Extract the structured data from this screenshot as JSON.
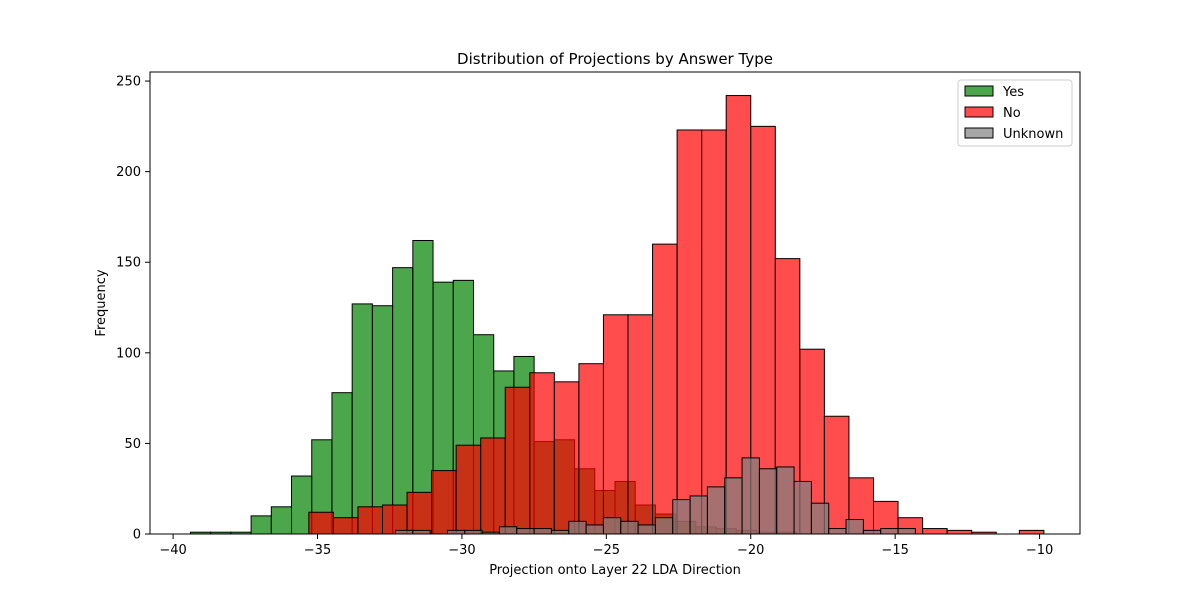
{
  "chart_data": {
    "type": "bar",
    "title": "Distribution of Projections by Answer Type",
    "xlabel": "Projection onto Layer 22 LDA Direction",
    "ylabel": "Frequency",
    "xlim": [
      -40.8,
      -8.6
    ],
    "ylim": [
      0,
      255
    ],
    "xticks": [
      -40,
      -35,
      -30,
      -25,
      -20,
      -15,
      -10
    ],
    "yticks": [
      0,
      50,
      100,
      150,
      200,
      250
    ],
    "grid": false,
    "legend_position": "top-right",
    "series": [
      {
        "name": "Yes",
        "color": "#008000",
        "bins": [
          [
            -39.4,
            -38.7,
            1
          ],
          [
            -38.7,
            -38.0,
            1
          ],
          [
            -38.0,
            -37.3,
            1
          ],
          [
            -37.3,
            -36.6,
            10
          ],
          [
            -36.6,
            -35.9,
            15
          ],
          [
            -35.9,
            -35.2,
            32
          ],
          [
            -35.2,
            -34.5,
            52
          ],
          [
            -34.5,
            -33.8,
            78
          ],
          [
            -33.8,
            -33.1,
            127
          ],
          [
            -33.1,
            -32.4,
            126
          ],
          [
            -32.4,
            -31.7,
            147
          ],
          [
            -31.7,
            -31.0,
            162
          ],
          [
            -31.0,
            -30.3,
            139
          ],
          [
            -30.3,
            -29.6,
            140
          ],
          [
            -29.6,
            -28.9,
            110
          ],
          [
            -28.9,
            -28.2,
            90
          ],
          [
            -28.2,
            -27.5,
            98
          ],
          [
            -27.5,
            -26.8,
            51
          ],
          [
            -26.8,
            -26.1,
            52
          ],
          [
            -26.1,
            -25.4,
            36
          ],
          [
            -25.4,
            -24.7,
            24
          ],
          [
            -24.7,
            -24.0,
            29
          ],
          [
            -24.0,
            -23.3,
            16
          ],
          [
            -23.3,
            -22.6,
            11
          ],
          [
            -22.6,
            -21.9,
            7
          ],
          [
            -21.9,
            -21.2,
            4
          ],
          [
            -21.2,
            -20.5,
            3
          ],
          [
            -20.5,
            -19.8,
            2
          ],
          [
            -19.8,
            -19.1,
            1
          ],
          [
            -19.1,
            -18.4,
            1
          ]
        ]
      },
      {
        "name": "No",
        "color": "#ff0000",
        "bins": [
          [
            -35.3,
            -34.45,
            12
          ],
          [
            -34.45,
            -33.6,
            9
          ],
          [
            -33.6,
            -32.75,
            15
          ],
          [
            -32.75,
            -31.9,
            16
          ],
          [
            -31.9,
            -31.05,
            23
          ],
          [
            -31.05,
            -30.2,
            35
          ],
          [
            -30.2,
            -29.35,
            49
          ],
          [
            -29.35,
            -28.5,
            53
          ],
          [
            -28.5,
            -27.65,
            81
          ],
          [
            -27.65,
            -26.8,
            89
          ],
          [
            -26.8,
            -25.95,
            84
          ],
          [
            -25.95,
            -25.1,
            94
          ],
          [
            -25.1,
            -24.25,
            121
          ],
          [
            -24.25,
            -23.4,
            121
          ],
          [
            -23.4,
            -22.55,
            160
          ],
          [
            -22.55,
            -21.7,
            223
          ],
          [
            -21.7,
            -20.85,
            223
          ],
          [
            -20.85,
            -20.0,
            242
          ],
          [
            -20.0,
            -19.15,
            225
          ],
          [
            -19.15,
            -18.3,
            152
          ],
          [
            -18.3,
            -17.45,
            102
          ],
          [
            -17.45,
            -16.6,
            65
          ],
          [
            -16.6,
            -15.75,
            31
          ],
          [
            -15.75,
            -14.9,
            18
          ],
          [
            -14.9,
            -14.05,
            9
          ],
          [
            -14.05,
            -13.2,
            3
          ],
          [
            -13.2,
            -12.35,
            2
          ],
          [
            -12.35,
            -11.5,
            1
          ],
          [
            -10.7,
            -9.85,
            2
          ]
        ]
      },
      {
        "name": "Unknown",
        "color": "#808080",
        "bins": [
          [
            -32.3,
            -31.7,
            2
          ],
          [
            -31.7,
            -31.1,
            2
          ],
          [
            -30.5,
            -29.9,
            2
          ],
          [
            -29.9,
            -29.3,
            2
          ],
          [
            -29.3,
            -28.7,
            1
          ],
          [
            -28.7,
            -28.1,
            4
          ],
          [
            -28.1,
            -27.5,
            3
          ],
          [
            -27.5,
            -26.9,
            3
          ],
          [
            -26.9,
            -26.3,
            2
          ],
          [
            -26.3,
            -25.7,
            7
          ],
          [
            -25.7,
            -25.1,
            5
          ],
          [
            -25.1,
            -24.5,
            9
          ],
          [
            -24.5,
            -23.9,
            7
          ],
          [
            -23.9,
            -23.3,
            5
          ],
          [
            -23.3,
            -22.7,
            9
          ],
          [
            -22.7,
            -22.1,
            19
          ],
          [
            -22.1,
            -21.5,
            21
          ],
          [
            -21.5,
            -20.9,
            26
          ],
          [
            -20.9,
            -20.3,
            31
          ],
          [
            -20.3,
            -19.7,
            42
          ],
          [
            -19.7,
            -19.1,
            36
          ],
          [
            -19.1,
            -18.5,
            37
          ],
          [
            -18.5,
            -17.9,
            29
          ],
          [
            -17.9,
            -17.3,
            17
          ],
          [
            -17.3,
            -16.7,
            3
          ],
          [
            -16.7,
            -16.1,
            8
          ],
          [
            -16.1,
            -15.5,
            2
          ],
          [
            -15.5,
            -14.9,
            3
          ],
          [
            -14.9,
            -14.3,
            3
          ]
        ]
      }
    ]
  }
}
